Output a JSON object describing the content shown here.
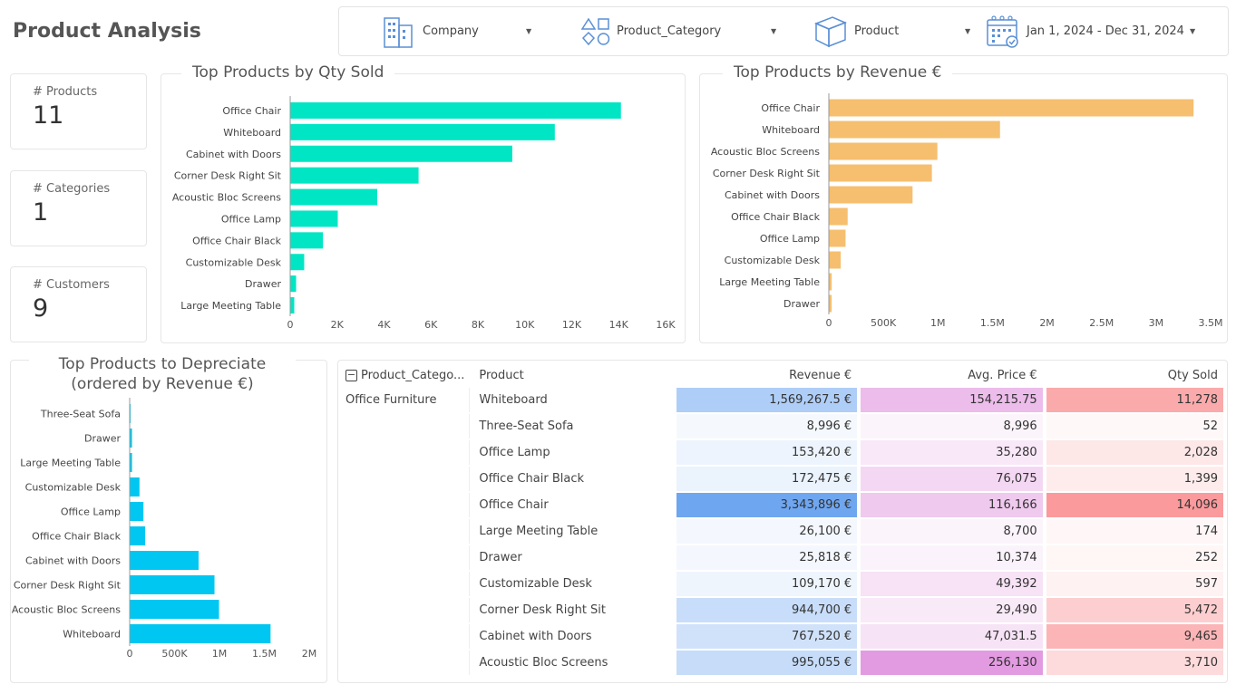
{
  "page_title": "Product Analysis",
  "filters": [
    {
      "label": "Company",
      "icon": "building-icon"
    },
    {
      "label": "Product_Category",
      "icon": "shapes-icon"
    },
    {
      "label": "Product",
      "icon": "box-icon"
    },
    {
      "label": "Jan 1, 2024 - Dec 31, 2024",
      "icon": "calendar-icon"
    }
  ],
  "kpis": [
    {
      "label": "# Products",
      "value": "11"
    },
    {
      "label": "# Categories",
      "value": "1"
    },
    {
      "label": "# Customers",
      "value": "9"
    }
  ],
  "colors": {
    "qty": "#00E5C3",
    "revenue": "#F5BF6F",
    "depreciate": "#00C7F2"
  },
  "chart_data": [
    {
      "type": "bar",
      "orientation": "horizontal",
      "title": "Top Products by Qty Sold",
      "categories": [
        "Office Chair",
        "Whiteboard",
        "Cabinet with Doors",
        "Corner Desk Right Sit",
        "Acoustic Bloc Screens",
        "Office Lamp",
        "Office Chair Black",
        "Customizable Desk",
        "Drawer",
        "Large Meeting Table"
      ],
      "values": [
        14096,
        11278,
        9465,
        5472,
        3710,
        2028,
        1399,
        597,
        252,
        174
      ],
      "xlim": [
        0,
        16000
      ],
      "xticks": [
        0,
        2000,
        4000,
        6000,
        8000,
        10000,
        12000,
        14000,
        16000
      ],
      "xtick_labels": [
        "0",
        "2K",
        "4K",
        "6K",
        "8K",
        "10K",
        "12K",
        "14K",
        "16K"
      ]
    },
    {
      "type": "bar",
      "orientation": "horizontal",
      "title": "Top Products by Revenue €",
      "categories": [
        "Office Chair",
        "Whiteboard",
        "Acoustic Bloc Screens",
        "Corner Desk Right Sit",
        "Cabinet with Doors",
        "Office Chair Black",
        "Office Lamp",
        "Customizable Desk",
        "Large Meeting Table",
        "Drawer"
      ],
      "values": [
        3343896,
        1569267.5,
        995055,
        944700,
        767520,
        172475,
        153420,
        109170,
        26100,
        25818
      ],
      "xlim": [
        0,
        3500000
      ],
      "xticks": [
        0,
        500000,
        1000000,
        1500000,
        2000000,
        2500000,
        3000000,
        3500000
      ],
      "xtick_labels": [
        "0",
        "500K",
        "1M",
        "1.5M",
        "2M",
        "2.5M",
        "3M",
        "3.5M"
      ]
    },
    {
      "type": "bar",
      "orientation": "horizontal",
      "title": "Top Products to Depreciate",
      "subtitle": "(ordered by Revenue €)",
      "categories": [
        "Three-Seat Sofa",
        "Drawer",
        "Large Meeting Table",
        "Customizable Desk",
        "Office Lamp",
        "Office Chair Black",
        "Cabinet with Doors",
        "Corner Desk Right Sit",
        "Acoustic Bloc Screens",
        "Whiteboard"
      ],
      "values": [
        8996,
        25818,
        26100,
        109170,
        153420,
        172475,
        767520,
        944700,
        995055,
        1569267.5
      ],
      "xlim": [
        0,
        2000000
      ],
      "xticks": [
        0,
        500000,
        1000000,
        1500000,
        2000000
      ],
      "xtick_labels": [
        "0",
        "500K",
        "1M",
        "1.5M",
        "2M"
      ]
    }
  ],
  "matrix": {
    "headers": [
      "Product_Catego...",
      "Product",
      "Revenue €",
      "Avg. Price €",
      "Qty Sold"
    ],
    "category": "Office Furniture",
    "rows": [
      {
        "product": "Whiteboard",
        "revenue": "1,569,267.5 €",
        "avg_price": "154,215.75",
        "qty": "11,278",
        "rev_n": 1569267.5,
        "avg_n": 154215.75,
        "qty_n": 11278
      },
      {
        "product": "Three-Seat Sofa",
        "revenue": "8,996 €",
        "avg_price": "8,996",
        "qty": "52",
        "rev_n": 8996,
        "avg_n": 8996,
        "qty_n": 52
      },
      {
        "product": "Office Lamp",
        "revenue": "153,420 €",
        "avg_price": "35,280",
        "qty": "2,028",
        "rev_n": 153420,
        "avg_n": 35280,
        "qty_n": 2028
      },
      {
        "product": "Office Chair Black",
        "revenue": "172,475 €",
        "avg_price": "76,075",
        "qty": "1,399",
        "rev_n": 172475,
        "avg_n": 76075,
        "qty_n": 1399
      },
      {
        "product": "Office Chair",
        "revenue": "3,343,896 €",
        "avg_price": "116,166",
        "qty": "14,096",
        "rev_n": 3343896,
        "avg_n": 116166,
        "qty_n": 14096
      },
      {
        "product": "Large Meeting Table",
        "revenue": "26,100 €",
        "avg_price": "8,700",
        "qty": "174",
        "rev_n": 26100,
        "avg_n": 8700,
        "qty_n": 174
      },
      {
        "product": "Drawer",
        "revenue": "25,818 €",
        "avg_price": "10,374",
        "qty": "252",
        "rev_n": 25818,
        "avg_n": 10374,
        "qty_n": 252
      },
      {
        "product": "Customizable Desk",
        "revenue": "109,170 €",
        "avg_price": "49,392",
        "qty": "597",
        "rev_n": 109170,
        "avg_n": 49392,
        "qty_n": 597
      },
      {
        "product": "Corner Desk Right Sit",
        "revenue": "944,700 €",
        "avg_price": "29,490",
        "qty": "5,472",
        "rev_n": 944700,
        "avg_n": 29490,
        "qty_n": 5472
      },
      {
        "product": "Cabinet with Doors",
        "revenue": "767,520 €",
        "avg_price": "47,031.5",
        "qty": "9,465",
        "rev_n": 767520,
        "avg_n": 47031.5,
        "qty_n": 9465
      },
      {
        "product": "Acoustic Bloc Screens",
        "revenue": "995,055 €",
        "avg_price": "256,130",
        "qty": "3,710",
        "rev_n": 995055,
        "avg_n": 256130,
        "qty_n": 3710
      }
    ],
    "scale_colors": {
      "revenue": "#6FA6F0",
      "avg_price": "#E29BE0",
      "qty": "#FA9A9C"
    }
  }
}
